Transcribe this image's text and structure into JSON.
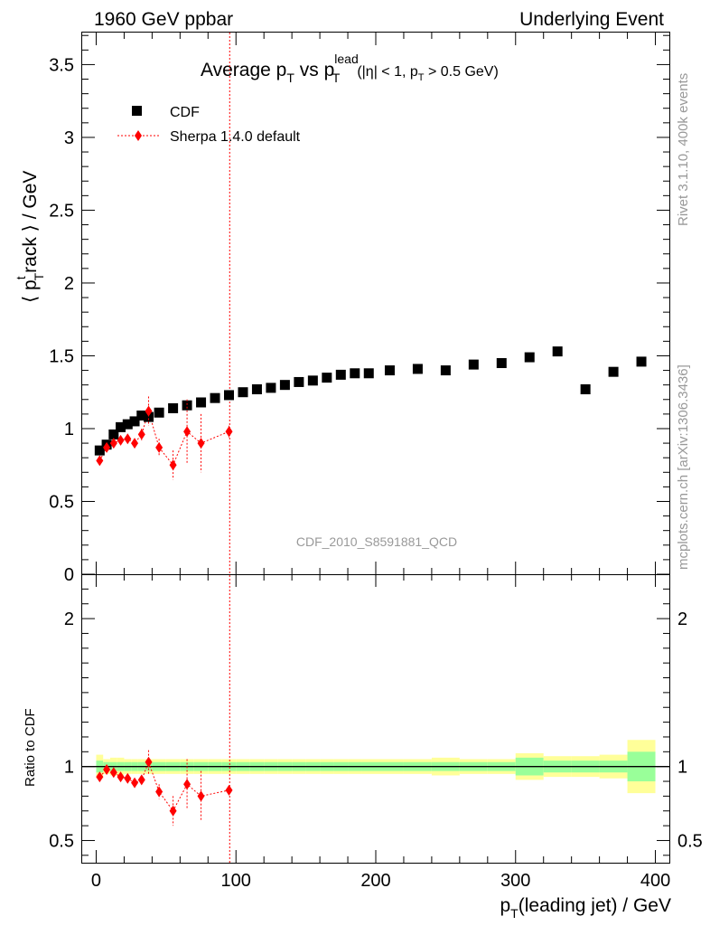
{
  "header": {
    "left": "1960 GeV ppbar",
    "right": "Underlying Event"
  },
  "side": {
    "rivet": "Rivet 3.1.10,  400k events",
    "site": "mcplots.cern.ch [arXiv:1306.3436]"
  },
  "colors": {
    "data": "#000000",
    "mc": "#ff0000",
    "band_inner": "#99ff99",
    "band_outer": "#ffff99",
    "watermark": "#999999"
  },
  "chart_data": {
    "type": "scatter",
    "title": {
      "main": "Average p",
      "main_sub": "T",
      "vs": " vs p",
      "vs_sup": "lead",
      "vs_sub": "T",
      "cut_a": "(|η| < 1, p",
      "cut_sub": "T",
      "cut_b": " > 0.5 GeV)"
    },
    "ylabel": {
      "open": "⟨ p",
      "sup": "t",
      "sub": "T",
      "rest": "rack ⟩ / GeV"
    },
    "xlabel": {
      "p": "p",
      "sub": "T",
      "rest": "(leading jet) / GeV"
    },
    "ratio_ylabel": "Ratio to CDF",
    "analysis_id": "CDF_2010_S8591881_QCD",
    "xlim": [
      -10,
      410
    ],
    "ylim": [
      0,
      3.72
    ],
    "ratio_ylim": [
      0.35,
      2.3
    ],
    "x_ticks": [
      0,
      100,
      200,
      300,
      400
    ],
    "x_tick_labels": [
      "0",
      "100",
      "200",
      "300",
      "400"
    ],
    "y_ticks": [
      0,
      0.5,
      1,
      1.5,
      2,
      2.5,
      3,
      3.5
    ],
    "y_tick_labels": [
      "0",
      "0.5",
      "1",
      "1.5",
      "2",
      "2.5",
      "3",
      "3.5"
    ],
    "ratio_ticks": [
      0.5,
      1,
      2
    ],
    "ratio_tick_labels": [
      "0.5",
      "1",
      "2"
    ],
    "vline_x": 95.5,
    "series": [
      {
        "name": "CDF",
        "marker": "square",
        "x": [
          2.5,
          7.5,
          12.5,
          17.5,
          22.5,
          27.5,
          32.5,
          37.5,
          45,
          55,
          65,
          75,
          85,
          95,
          105,
          115,
          125,
          135,
          145,
          155,
          165,
          175,
          185,
          195,
          210,
          230,
          250,
          270,
          290,
          310,
          330,
          350,
          370,
          390
        ],
        "y": [
          0.85,
          0.89,
          0.96,
          1.01,
          1.03,
          1.05,
          1.09,
          1.08,
          1.11,
          1.14,
          1.16,
          1.18,
          1.21,
          1.23,
          1.25,
          1.27,
          1.28,
          1.3,
          1.32,
          1.33,
          1.35,
          1.37,
          1.38,
          1.38,
          1.4,
          1.41,
          1.4,
          1.44,
          1.45,
          1.49,
          1.53,
          1.27,
          1.39,
          1.46
        ],
        "xlo": [
          0,
          5,
          10,
          15,
          20,
          25,
          30,
          35,
          40,
          50,
          60,
          70,
          80,
          90,
          100,
          110,
          120,
          130,
          140,
          150,
          160,
          170,
          180,
          190,
          200,
          220,
          240,
          260,
          280,
          300,
          320,
          340,
          360,
          380
        ],
        "xhi": [
          5,
          10,
          15,
          20,
          25,
          30,
          35,
          40,
          50,
          60,
          70,
          80,
          90,
          100,
          110,
          120,
          130,
          140,
          150,
          160,
          170,
          180,
          190,
          200,
          220,
          240,
          260,
          280,
          300,
          320,
          340,
          360,
          380,
          400
        ],
        "band_inner": [
          0.04,
          0.03,
          0.03,
          0.03,
          0.03,
          0.03,
          0.03,
          0.03,
          0.03,
          0.03,
          0.03,
          0.03,
          0.03,
          0.03,
          0.03,
          0.03,
          0.03,
          0.03,
          0.03,
          0.03,
          0.03,
          0.03,
          0.03,
          0.03,
          0.03,
          0.03,
          0.03,
          0.03,
          0.03,
          0.06,
          0.04,
          0.04,
          0.04,
          0.1
        ],
        "band_outer": [
          0.08,
          0.05,
          0.06,
          0.06,
          0.05,
          0.05,
          0.05,
          0.05,
          0.05,
          0.05,
          0.05,
          0.05,
          0.05,
          0.05,
          0.05,
          0.05,
          0.05,
          0.05,
          0.05,
          0.05,
          0.05,
          0.05,
          0.05,
          0.05,
          0.05,
          0.05,
          0.06,
          0.05,
          0.05,
          0.09,
          0.07,
          0.07,
          0.08,
          0.18
        ]
      },
      {
        "name": "Sherpa 1.4.0 default",
        "marker": "diamond",
        "x": [
          2.5,
          7.5,
          12.5,
          17.5,
          22.5,
          27.5,
          32.5,
          37.5,
          45,
          55,
          65,
          75,
          95
        ],
        "y": [
          0.78,
          0.87,
          0.9,
          0.92,
          0.93,
          0.9,
          0.96,
          1.12,
          0.87,
          0.75,
          0.98,
          0.9,
          0.98
        ],
        "yerr": [
          0.02,
          0.02,
          0.02,
          0.02,
          0.03,
          0.02,
          0.04,
          0.1,
          0.06,
          0.1,
          0.22,
          0.2,
          0.04
        ],
        "ratio": [
          0.93,
          0.98,
          0.96,
          0.93,
          0.92,
          0.89,
          0.91,
          1.03,
          0.83,
          0.7,
          0.88,
          0.8,
          0.84
        ],
        "ratio_err": [
          0.02,
          0.02,
          0.02,
          0.02,
          0.02,
          0.02,
          0.03,
          0.08,
          0.05,
          0.1,
          0.17,
          0.17,
          0.02
        ]
      }
    ]
  }
}
